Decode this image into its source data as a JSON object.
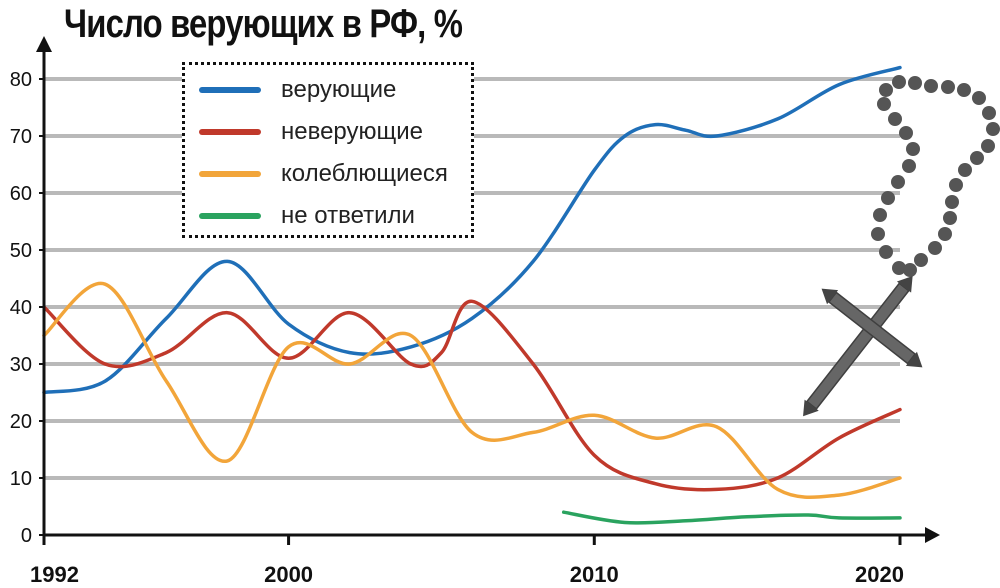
{
  "chart_data": {
    "type": "line",
    "title": "Число верующих в РФ, %",
    "xlabel": "",
    "ylabel": "",
    "xlim": [
      1992,
      2020
    ],
    "ylim": [
      0,
      85
    ],
    "x_ticks": [
      1992,
      2000,
      2010,
      2020
    ],
    "y_ticks": [
      0,
      10,
      20,
      30,
      40,
      50,
      60,
      70,
      80
    ],
    "grid": true,
    "legend_placement": "top-left",
    "series": [
      {
        "name": "верующие",
        "color": "#1f6fb8",
        "x": [
          1992,
          1994,
          1996,
          1998,
          2000,
          2002,
          2004,
          2006,
          2008,
          2010,
          2011,
          2012,
          2013,
          2014,
          2016,
          2018,
          2020
        ],
        "y": [
          25,
          27,
          38,
          48,
          37,
          32,
          33,
          38,
          48,
          64,
          70,
          72,
          71,
          70,
          73,
          79,
          82
        ]
      },
      {
        "name": "неверующие",
        "color": "#c0392b",
        "x": [
          1992,
          1994,
          1996,
          1998,
          2000,
          2002,
          2004,
          2005,
          2006,
          2008,
          2010,
          2012,
          2014,
          2016,
          2018,
          2020
        ],
        "y": [
          40,
          30,
          32,
          39,
          31,
          39,
          30,
          32,
          41,
          30,
          14,
          9,
          8,
          10,
          17,
          22
        ]
      },
      {
        "name": "колеблющиеся",
        "color": "#f2a53a",
        "x": [
          1992,
          1994,
          1996,
          1998,
          2000,
          2002,
          2004,
          2006,
          2008,
          2010,
          2012,
          2014,
          2016,
          2018,
          2020
        ],
        "y": [
          35,
          44,
          27,
          13,
          33,
          30,
          35,
          18,
          18,
          21,
          17,
          19,
          8,
          7,
          10
        ]
      },
      {
        "name": "не ответили",
        "color": "#2aa35f",
        "x": [
          2009,
          2011,
          2013,
          2015,
          2017,
          2018,
          2020
        ],
        "y": [
          4,
          2.2,
          2.5,
          3.2,
          3.5,
          3.0,
          3.0
        ]
      }
    ]
  }
}
